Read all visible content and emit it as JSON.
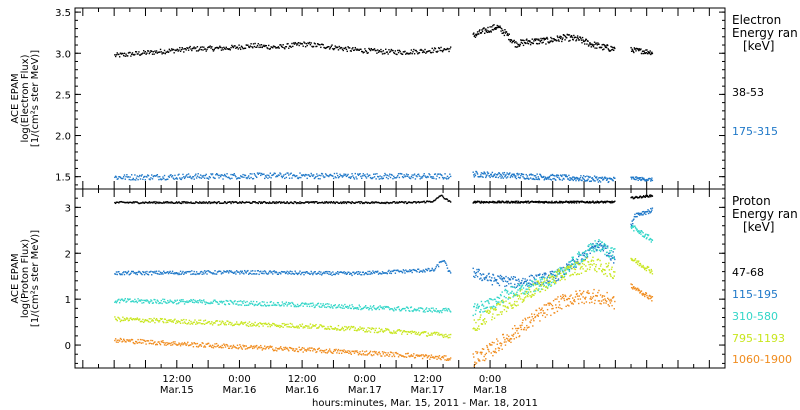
{
  "chart_data": [
    {
      "type": "scatter",
      "ylabel_lines": [
        "ACE EPAM",
        "log(Electron Flux)",
        "[1/(cm²s ster MeV)]"
      ],
      "ylim": [
        1.35,
        3.55
      ],
      "yticks": [
        1.5,
        2.0,
        2.5,
        3.0,
        3.5
      ],
      "ytick_labels": [
        "1.5",
        "2.0",
        "2.5",
        "3.0",
        "3.5"
      ],
      "legend_title_lines": [
        "Electron",
        "Energy ran",
        "[keV]"
      ],
      "legend_position": "right",
      "series": [
        {
          "name": "38-53",
          "color": "#000000",
          "segments": [
            {
              "x0": 0.0,
              "x1": 2.68,
              "base": [
                [
                  0,
                  2.98
                ],
                [
                  0.3,
                  3.02
                ],
                [
                  0.6,
                  3.06
                ],
                [
                  0.9,
                  3.07
                ],
                [
                  1.1,
                  3.1
                ],
                [
                  1.3,
                  3.08
                ],
                [
                  1.5,
                  3.12
                ],
                [
                  1.7,
                  3.09
                ],
                [
                  1.9,
                  3.05
                ],
                [
                  2.1,
                  3.03
                ],
                [
                  2.3,
                  3.02
                ],
                [
                  2.5,
                  3.04
                ],
                [
                  2.68,
                  3.06
                ]
              ],
              "noise": 0.03,
              "n": 420
            },
            {
              "x0": 2.86,
              "x1": 3.99,
              "base": [
                [
                  2.86,
                  3.22
                ],
                [
                  2.95,
                  3.28
                ],
                [
                  3.05,
                  3.33
                ],
                [
                  3.12,
                  3.25
                ],
                [
                  3.2,
                  3.12
                ],
                [
                  3.3,
                  3.15
                ],
                [
                  3.45,
                  3.16
                ],
                [
                  3.6,
                  3.2
                ],
                [
                  3.7,
                  3.18
                ],
                [
                  3.8,
                  3.12
                ],
                [
                  3.9,
                  3.08
                ],
                [
                  3.99,
                  3.06
                ]
              ],
              "noise": 0.04,
              "n": 260
            },
            {
              "x0": 4.12,
              "x1": 4.29,
              "base": [
                [
                  4.12,
                  3.05
                ],
                [
                  4.29,
                  3.02
                ]
              ],
              "noise": 0.03,
              "n": 40
            }
          ]
        },
        {
          "name": "175-315",
          "color": "#1f78c8",
          "segments": [
            {
              "x0": 0.0,
              "x1": 2.68,
              "base": [
                [
                  0,
                  1.5
                ],
                [
                  1.3,
                  1.52
                ],
                [
                  2.68,
                  1.51
                ]
              ],
              "noise": 0.035,
              "n": 420
            },
            {
              "x0": 2.86,
              "x1": 3.99,
              "base": [
                [
                  2.86,
                  1.54
                ],
                [
                  3.5,
                  1.5
                ],
                [
                  3.99,
                  1.47
                ]
              ],
              "noise": 0.035,
              "n": 260
            },
            {
              "x0": 4.12,
              "x1": 4.29,
              "base": [
                [
                  4.12,
                  1.49
                ],
                [
                  4.29,
                  1.47
                ]
              ],
              "noise": 0.02,
              "n": 40
            }
          ]
        }
      ]
    },
    {
      "type": "scatter",
      "ylabel_lines": [
        "ACE EPAM",
        "log(Proton Flux)",
        "[1/(cm²s ster MeV)]"
      ],
      "ylim": [
        -0.5,
        3.4
      ],
      "yticks": [
        0,
        1,
        2,
        3
      ],
      "ytick_labels": [
        "0",
        "1",
        "2",
        "3"
      ],
      "legend_title_lines": [
        "Proton",
        "Energy ran",
        "[keV]"
      ],
      "legend_position": "right",
      "series": [
        {
          "name": "47-68",
          "color": "#000000",
          "segments": [
            {
              "x0": 0.0,
              "x1": 2.68,
              "base": [
                [
                  0,
                  3.12
                ],
                [
                  2.4,
                  3.12
                ],
                [
                  2.55,
                  3.15
                ],
                [
                  2.6,
                  3.28
                ],
                [
                  2.68,
                  3.12
                ]
              ],
              "noise": 0.02,
              "n": 420
            },
            {
              "x0": 2.86,
              "x1": 3.99,
              "base": [
                [
                  2.86,
                  3.13
                ],
                [
                  3.99,
                  3.13
                ]
              ],
              "noise": 0.02,
              "n": 260
            },
            {
              "x0": 4.12,
              "x1": 4.29,
              "base": [
                [
                  4.12,
                  3.22
                ],
                [
                  4.29,
                  3.27
                ]
              ],
              "noise": 0.02,
              "n": 40
            }
          ]
        },
        {
          "name": "115-195",
          "color": "#1f78c8",
          "segments": [
            {
              "x0": 0.0,
              "x1": 2.68,
              "base": [
                [
                  0,
                  1.58
                ],
                [
                  1.0,
                  1.6
                ],
                [
                  1.9,
                  1.57
                ],
                [
                  2.3,
                  1.62
                ],
                [
                  2.55,
                  1.65
                ],
                [
                  2.62,
                  1.88
                ],
                [
                  2.68,
                  1.55
                ]
              ],
              "noise": 0.04,
              "n": 420
            },
            {
              "x0": 2.86,
              "x1": 3.99,
              "base": [
                [
                  2.86,
                  1.6
                ],
                [
                  3.0,
                  1.45
                ],
                [
                  3.2,
                  1.38
                ],
                [
                  3.4,
                  1.45
                ],
                [
                  3.55,
                  1.55
                ],
                [
                  3.7,
                  1.85
                ],
                [
                  3.8,
                  2.1
                ],
                [
                  3.88,
                  2.2
                ],
                [
                  3.99,
                  1.9
                ]
              ],
              "noise": 0.12,
              "n": 260
            },
            {
              "x0": 4.12,
              "x1": 4.29,
              "base": [
                [
                  4.12,
                  2.6
                ],
                [
                  4.15,
                  2.85
                ],
                [
                  4.29,
                  2.95
                ]
              ],
              "noise": 0.05,
              "n": 40
            }
          ]
        },
        {
          "name": "310-580",
          "color": "#33d6c8",
          "segments": [
            {
              "x0": 0.0,
              "x1": 2.68,
              "base": [
                [
                  0,
                  0.98
                ],
                [
                  0.8,
                  0.95
                ],
                [
                  1.6,
                  0.88
                ],
                [
                  2.3,
                  0.8
                ],
                [
                  2.68,
                  0.76
                ]
              ],
              "noise": 0.05,
              "n": 420
            },
            {
              "x0": 2.86,
              "x1": 3.99,
              "base": [
                [
                  2.86,
                  0.8
                ],
                [
                  3.0,
                  0.9
                ],
                [
                  3.15,
                  1.15
                ],
                [
                  3.3,
                  1.25
                ],
                [
                  3.5,
                  1.45
                ],
                [
                  3.7,
                  1.9
                ],
                [
                  3.85,
                  2.2
                ],
                [
                  3.99,
                  2.0
                ]
              ],
              "noise": 0.14,
              "n": 260
            },
            {
              "x0": 4.12,
              "x1": 4.29,
              "base": [
                [
                  4.12,
                  2.6
                ],
                [
                  4.29,
                  2.3
                ]
              ],
              "noise": 0.06,
              "n": 40
            }
          ]
        },
        {
          "name": "795-1193",
          "color": "#c8e61e",
          "segments": [
            {
              "x0": 0.0,
              "x1": 2.68,
              "base": [
                [
                  0,
                  0.58
                ],
                [
                  0.8,
                  0.5
                ],
                [
                  1.6,
                  0.42
                ],
                [
                  2.3,
                  0.3
                ],
                [
                  2.68,
                  0.22
                ]
              ],
              "noise": 0.05,
              "n": 420
            },
            {
              "x0": 2.86,
              "x1": 3.99,
              "base": [
                [
                  2.86,
                  0.4
                ],
                [
                  3.0,
                  0.7
                ],
                [
                  3.2,
                  1.0
                ],
                [
                  3.4,
                  1.3
                ],
                [
                  3.6,
                  1.6
                ],
                [
                  3.8,
                  1.8
                ],
                [
                  3.99,
                  1.6
                ]
              ],
              "noise": 0.15,
              "n": 260
            },
            {
              "x0": 4.12,
              "x1": 4.29,
              "base": [
                [
                  4.12,
                  1.9
                ],
                [
                  4.29,
                  1.62
                ]
              ],
              "noise": 0.06,
              "n": 40
            }
          ]
        },
        {
          "name": "1060-1900",
          "color": "#f08c1e",
          "segments": [
            {
              "x0": 0.0,
              "x1": 2.68,
              "base": [
                [
                  0,
                  0.12
                ],
                [
                  0.8,
                  0.0
                ],
                [
                  1.6,
                  -0.1
                ],
                [
                  2.3,
                  -0.2
                ],
                [
                  2.68,
                  -0.28
                ]
              ],
              "noise": 0.05,
              "n": 420
            },
            {
              "x0": 2.86,
              "x1": 3.99,
              "base": [
                [
                  2.86,
                  -0.3
                ],
                [
                  3.0,
                  -0.1
                ],
                [
                  3.2,
                  0.3
                ],
                [
                  3.4,
                  0.7
                ],
                [
                  3.6,
                  1.0
                ],
                [
                  3.8,
                  1.1
                ],
                [
                  3.99,
                  0.95
                ]
              ],
              "noise": 0.16,
              "n": 260
            },
            {
              "x0": 4.12,
              "x1": 4.29,
              "base": [
                [
                  4.12,
                  1.3
                ],
                [
                  4.29,
                  1.02
                ]
              ],
              "noise": 0.05,
              "n": 40
            }
          ]
        }
      ]
    }
  ],
  "x_axis": {
    "xlim": [
      -0.3125,
      4.875
    ],
    "tick_positions": [
      0,
      1,
      2,
      3,
      4
    ],
    "tick_labels_line1": [
      "12:00",
      "0:00",
      "12:00",
      "0:00",
      "12:00",
      "0:00"
    ],
    "tick_labels_line2": [
      "Mar.15",
      "Mar.16",
      "Mar.16",
      "Mar.17",
      "Mar.17",
      "Mar.18"
    ],
    "tick_label_values": [
      0.5,
      1.0,
      1.5,
      2.0,
      2.5,
      3.0
    ],
    "minor_tick_step": 0.125,
    "xlabel": "hours:minutes, Mar. 15, 2011 - Mar. 18, 2011"
  }
}
